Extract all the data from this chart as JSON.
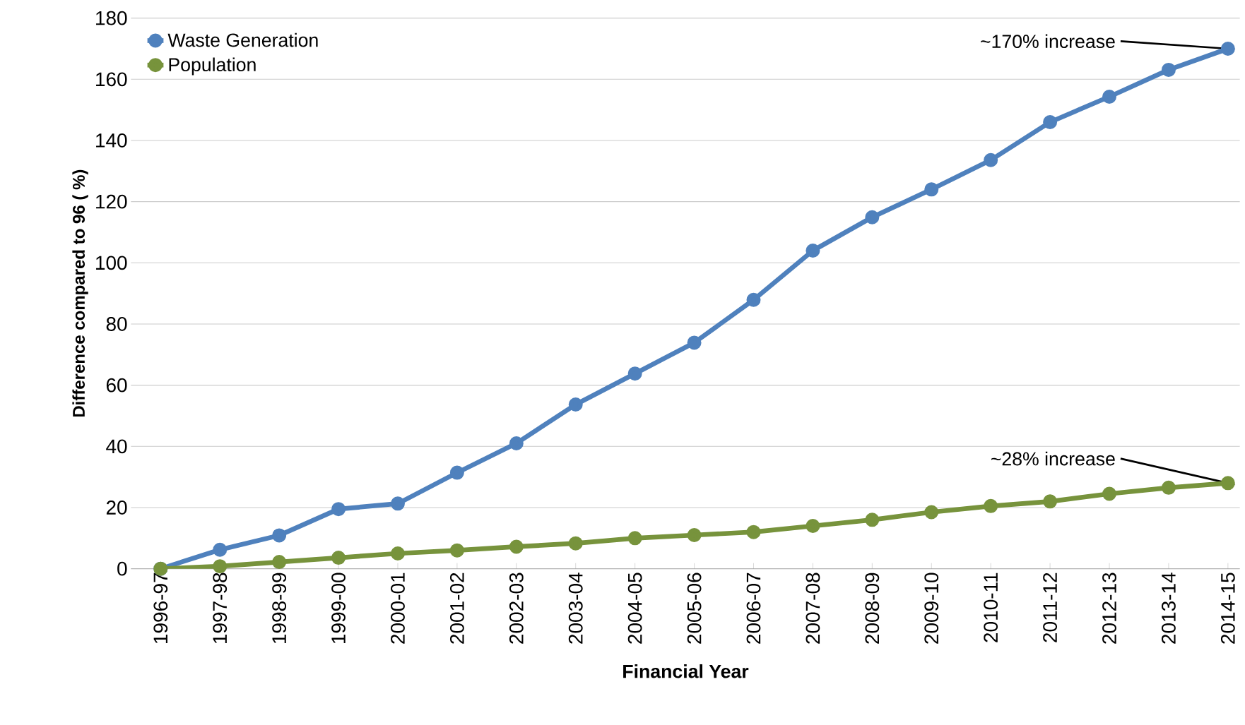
{
  "chart_data": {
    "type": "line",
    "xlabel": "Financial Year",
    "ylabel": "Difference compared to 96 ( %)",
    "categories": [
      "1996-97",
      "1997-98",
      "1998-99",
      "1999-00",
      "2000-01",
      "2001-02",
      "2002-03",
      "2003-04",
      "2004-05",
      "2005-06",
      "2006-07",
      "2007-08",
      "2008-09",
      "2009-10",
      "2010-11",
      "2011-12",
      "2012-13",
      "2013-14",
      "2014-15"
    ],
    "series": [
      {
        "name": "Waste Generation",
        "color": "#4f81bd",
        "values": [
          0,
          6.2,
          10.9,
          19.5,
          21.3,
          31.4,
          41,
          53.7,
          63.8,
          73.9,
          87.9,
          104,
          114.9,
          124,
          133.6,
          146,
          154.3,
          163.1,
          170
        ]
      },
      {
        "name": "Population",
        "color": "#77933c",
        "values": [
          0,
          0.8,
          2.2,
          3.6,
          5,
          6,
          7.2,
          8.3,
          10,
          11,
          12,
          14,
          16,
          18.5,
          20.5,
          22,
          24.5,
          26.5,
          28
        ]
      }
    ],
    "annotations": [
      {
        "text": "~170% increase",
        "x": "2014-15",
        "y": 170
      },
      {
        "text": "~28% increase",
        "x": "2014-15",
        "y": 28
      }
    ],
    "ylim": [
      0,
      180
    ],
    "yticks": [
      0,
      20,
      40,
      60,
      80,
      100,
      120,
      140,
      160,
      180
    ],
    "grid": "y",
    "legend": "top left",
    "marker": "circle",
    "line_style": "solid"
  }
}
